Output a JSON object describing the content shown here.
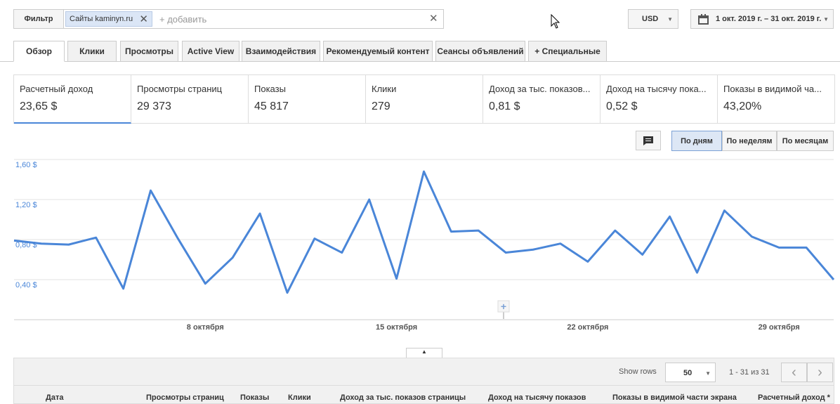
{
  "filter": {
    "button": "Фильтр",
    "chip": "Сайты kaminyn.ru",
    "add": "+ добавить"
  },
  "currency": "USD",
  "date_range": "1 окт. 2019 г. – 31 окт. 2019 г.",
  "tabs": [
    "Обзор",
    "Клики",
    "Просмотры",
    "Active View",
    "Взаимодействия",
    "Рекомендуемый контент",
    "Сеансы объявлений",
    "+  Специальные"
  ],
  "metrics": [
    {
      "label": "Расчетный доход",
      "value": "23,65 $"
    },
    {
      "label": "Просмотры страниц",
      "value": "29 373"
    },
    {
      "label": "Показы",
      "value": "45 817"
    },
    {
      "label": "Клики",
      "value": "279"
    },
    {
      "label": "Доход за тыс. показов...",
      "value": "0,81 $"
    },
    {
      "label": "Доход на тысячу пока...",
      "value": "0,52 $"
    },
    {
      "label": "Показы в видимой ча...",
      "value": "43,20%"
    }
  ],
  "granularity": [
    "По дням",
    "По неделям",
    "По месяцам"
  ],
  "chart_data": {
    "type": "line",
    "categories": [
      null,
      null,
      null,
      null,
      null,
      null,
      null,
      "8 октября",
      null,
      null,
      null,
      null,
      null,
      null,
      "15 октября",
      null,
      null,
      null,
      null,
      null,
      null,
      "22 октября",
      null,
      null,
      null,
      null,
      null,
      null,
      "29 октября",
      null,
      null
    ],
    "values": [
      0.79,
      0.76,
      0.75,
      0.82,
      0.31,
      1.29,
      0.81,
      0.36,
      0.62,
      1.06,
      0.27,
      0.81,
      0.67,
      1.2,
      0.41,
      1.48,
      0.88,
      0.89,
      0.67,
      0.7,
      0.76,
      0.58,
      0.89,
      0.65,
      1.03,
      0.47,
      1.09,
      0.83,
      0.72,
      0.72,
      0.4
    ],
    "color": "#4a86d8",
    "ylim": [
      0,
      1.6
    ],
    "yticks": [
      {
        "value": 0.4,
        "label": "0,40 $"
      },
      {
        "value": 0.8,
        "label": "0,80 $"
      },
      {
        "value": 1.2,
        "label": "1,20 $"
      },
      {
        "value": 1.6,
        "label": "1,60 $"
      }
    ],
    "grid": true
  },
  "table": {
    "show_rows_label": "Show rows",
    "rows_per_page": "50",
    "pagination": "1 - 31 из 31",
    "headers": [
      "Дата",
      "Просмотры страниц",
      "Показы",
      "Клики",
      "Доход за тыс. показов страницы",
      "Доход на тысячу показов",
      "Показы в видимой части экрана",
      "Расчетный доход *"
    ]
  }
}
